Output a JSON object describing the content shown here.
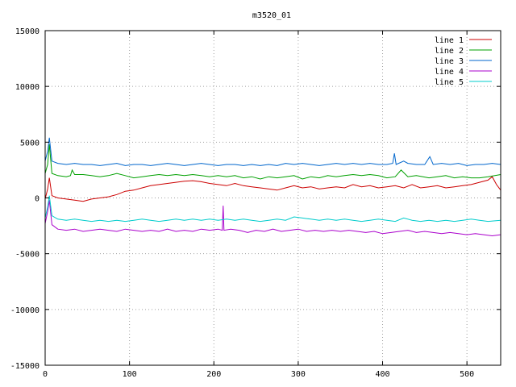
{
  "chart_data": {
    "type": "line",
    "title": "m3520_01",
    "xlabel": "",
    "ylabel": "",
    "xlim": [
      0,
      540
    ],
    "ylim": [
      -15000,
      15000
    ],
    "xticks": [
      0,
      100,
      200,
      300,
      400,
      500
    ],
    "xtick_labels": [
      "0",
      "100",
      "200",
      "300",
      "400",
      "500"
    ],
    "yticks": [
      -15000,
      -10000,
      -5000,
      0,
      5000,
      10000,
      15000
    ],
    "ytick_labels": [
      "-15000",
      "-10000",
      "-5000",
      "0",
      "5000",
      "10000",
      "15000"
    ],
    "grid": true,
    "legend_position": "top-right",
    "series": [
      {
        "name": "line 1",
        "color": "#cc0000",
        "points": [
          [
            0,
            -100
          ],
          [
            3,
            800
          ],
          [
            5,
            1800
          ],
          [
            8,
            200
          ],
          [
            15,
            0
          ],
          [
            25,
            -100
          ],
          [
            35,
            -200
          ],
          [
            45,
            -300
          ],
          [
            55,
            -100
          ],
          [
            65,
            0
          ],
          [
            75,
            100
          ],
          [
            85,
            300
          ],
          [
            95,
            600
          ],
          [
            105,
            700
          ],
          [
            115,
            900
          ],
          [
            125,
            1100
          ],
          [
            135,
            1200
          ],
          [
            145,
            1300
          ],
          [
            155,
            1400
          ],
          [
            165,
            1500
          ],
          [
            175,
            1550
          ],
          [
            185,
            1450
          ],
          [
            195,
            1300
          ],
          [
            205,
            1200
          ],
          [
            215,
            1100
          ],
          [
            225,
            1300
          ],
          [
            235,
            1100
          ],
          [
            245,
            1000
          ],
          [
            255,
            900
          ],
          [
            265,
            800
          ],
          [
            275,
            700
          ],
          [
            285,
            900
          ],
          [
            295,
            1100
          ],
          [
            305,
            900
          ],
          [
            315,
            1000
          ],
          [
            325,
            800
          ],
          [
            335,
            900
          ],
          [
            345,
            1000
          ],
          [
            355,
            900
          ],
          [
            365,
            1200
          ],
          [
            375,
            1000
          ],
          [
            385,
            1100
          ],
          [
            395,
            900
          ],
          [
            405,
            1000
          ],
          [
            415,
            1100
          ],
          [
            425,
            900
          ],
          [
            435,
            1200
          ],
          [
            445,
            900
          ],
          [
            455,
            1000
          ],
          [
            465,
            1100
          ],
          [
            475,
            900
          ],
          [
            485,
            1000
          ],
          [
            495,
            1100
          ],
          [
            505,
            1200
          ],
          [
            515,
            1400
          ],
          [
            525,
            1600
          ],
          [
            530,
            1900
          ],
          [
            535,
            1200
          ],
          [
            540,
            700
          ]
        ]
      },
      {
        "name": "line 2",
        "color": "#00a000",
        "points": [
          [
            0,
            2200
          ],
          [
            3,
            3000
          ],
          [
            5,
            4800
          ],
          [
            8,
            2200
          ],
          [
            15,
            2000
          ],
          [
            25,
            1900
          ],
          [
            30,
            2000
          ],
          [
            32,
            2500
          ],
          [
            35,
            2100
          ],
          [
            45,
            2100
          ],
          [
            55,
            2000
          ],
          [
            65,
            1900
          ],
          [
            75,
            2000
          ],
          [
            85,
            2200
          ],
          [
            95,
            2000
          ],
          [
            105,
            1800
          ],
          [
            115,
            1900
          ],
          [
            125,
            2000
          ],
          [
            135,
            2100
          ],
          [
            145,
            2000
          ],
          [
            155,
            2100
          ],
          [
            165,
            2000
          ],
          [
            175,
            2100
          ],
          [
            185,
            2000
          ],
          [
            195,
            1900
          ],
          [
            205,
            2000
          ],
          [
            215,
            1900
          ],
          [
            225,
            2000
          ],
          [
            235,
            1800
          ],
          [
            245,
            1900
          ],
          [
            255,
            1700
          ],
          [
            265,
            1900
          ],
          [
            275,
            1800
          ],
          [
            285,
            1900
          ],
          [
            295,
            2000
          ],
          [
            305,
            1700
          ],
          [
            315,
            1900
          ],
          [
            325,
            1800
          ],
          [
            335,
            2000
          ],
          [
            345,
            1900
          ],
          [
            355,
            2000
          ],
          [
            365,
            2100
          ],
          [
            375,
            2000
          ],
          [
            385,
            2100
          ],
          [
            395,
            2000
          ],
          [
            405,
            1800
          ],
          [
            415,
            1900
          ],
          [
            422,
            2500
          ],
          [
            430,
            1900
          ],
          [
            440,
            2000
          ],
          [
            455,
            1800
          ],
          [
            465,
            1900
          ],
          [
            475,
            2000
          ],
          [
            485,
            1800
          ],
          [
            495,
            1900
          ],
          [
            505,
            1800
          ],
          [
            515,
            1800
          ],
          [
            525,
            1900
          ],
          [
            540,
            2100
          ]
        ]
      },
      {
        "name": "line 3",
        "color": "#0066cc",
        "points": [
          [
            0,
            3300
          ],
          [
            3,
            4200
          ],
          [
            5,
            5400
          ],
          [
            8,
            3300
          ],
          [
            15,
            3100
          ],
          [
            25,
            3000
          ],
          [
            35,
            3100
          ],
          [
            45,
            3000
          ],
          [
            55,
            3000
          ],
          [
            65,
            2900
          ],
          [
            75,
            3000
          ],
          [
            85,
            3100
          ],
          [
            95,
            2900
          ],
          [
            105,
            3000
          ],
          [
            115,
            3000
          ],
          [
            125,
            2900
          ],
          [
            135,
            3000
          ],
          [
            145,
            3100
          ],
          [
            155,
            3000
          ],
          [
            165,
            2900
          ],
          [
            175,
            3000
          ],
          [
            185,
            3100
          ],
          [
            195,
            3000
          ],
          [
            205,
            2900
          ],
          [
            215,
            3000
          ],
          [
            225,
            3000
          ],
          [
            235,
            2900
          ],
          [
            245,
            3000
          ],
          [
            255,
            2900
          ],
          [
            265,
            3000
          ],
          [
            275,
            2900
          ],
          [
            285,
            3100
          ],
          [
            295,
            3000
          ],
          [
            305,
            3100
          ],
          [
            315,
            3000
          ],
          [
            325,
            2900
          ],
          [
            335,
            3000
          ],
          [
            345,
            3100
          ],
          [
            355,
            3000
          ],
          [
            365,
            3100
          ],
          [
            375,
            3000
          ],
          [
            385,
            3100
          ],
          [
            395,
            3000
          ],
          [
            405,
            3000
          ],
          [
            412,
            3100
          ],
          [
            414,
            4000
          ],
          [
            416,
            3000
          ],
          [
            425,
            3300
          ],
          [
            430,
            3100
          ],
          [
            440,
            3000
          ],
          [
            450,
            3000
          ],
          [
            456,
            3700
          ],
          [
            460,
            3000
          ],
          [
            470,
            3100
          ],
          [
            480,
            3000
          ],
          [
            490,
            3100
          ],
          [
            500,
            2900
          ],
          [
            510,
            3000
          ],
          [
            520,
            3000
          ],
          [
            530,
            3100
          ],
          [
            540,
            3000
          ]
        ]
      },
      {
        "name": "line 4",
        "color": "#aa00cc",
        "points": [
          [
            0,
            -2300
          ],
          [
            3,
            -1200
          ],
          [
            5,
            -200
          ],
          [
            8,
            -2400
          ],
          [
            15,
            -2800
          ],
          [
            25,
            -2900
          ],
          [
            35,
            -2800
          ],
          [
            45,
            -3000
          ],
          [
            55,
            -2900
          ],
          [
            65,
            -2800
          ],
          [
            75,
            -2900
          ],
          [
            85,
            -3000
          ],
          [
            95,
            -2800
          ],
          [
            105,
            -2900
          ],
          [
            115,
            -3000
          ],
          [
            125,
            -2900
          ],
          [
            135,
            -3000
          ],
          [
            145,
            -2800
          ],
          [
            155,
            -3000
          ],
          [
            165,
            -2900
          ],
          [
            175,
            -3000
          ],
          [
            185,
            -2800
          ],
          [
            195,
            -2900
          ],
          [
            205,
            -2800
          ],
          [
            210,
            -2900
          ],
          [
            211,
            -700
          ],
          [
            212,
            -2900
          ],
          [
            220,
            -2800
          ],
          [
            230,
            -2900
          ],
          [
            240,
            -3100
          ],
          [
            250,
            -2900
          ],
          [
            260,
            -3000
          ],
          [
            270,
            -2800
          ],
          [
            280,
            -3000
          ],
          [
            290,
            -2900
          ],
          [
            300,
            -2800
          ],
          [
            310,
            -3000
          ],
          [
            320,
            -2900
          ],
          [
            330,
            -3000
          ],
          [
            340,
            -2900
          ],
          [
            350,
            -3000
          ],
          [
            360,
            -2900
          ],
          [
            370,
            -3000
          ],
          [
            380,
            -3100
          ],
          [
            390,
            -3000
          ],
          [
            400,
            -3200
          ],
          [
            410,
            -3100
          ],
          [
            420,
            -3000
          ],
          [
            430,
            -2900
          ],
          [
            440,
            -3100
          ],
          [
            450,
            -3000
          ],
          [
            460,
            -3100
          ],
          [
            470,
            -3200
          ],
          [
            480,
            -3100
          ],
          [
            490,
            -3200
          ],
          [
            500,
            -3300
          ],
          [
            510,
            -3200
          ],
          [
            520,
            -3300
          ],
          [
            530,
            -3400
          ],
          [
            540,
            -3300
          ]
        ]
      },
      {
        "name": "line 5",
        "color": "#00cccc",
        "points": [
          [
            0,
            -1800
          ],
          [
            3,
            -800
          ],
          [
            5,
            200
          ],
          [
            8,
            -1600
          ],
          [
            15,
            -1900
          ],
          [
            25,
            -2000
          ],
          [
            35,
            -1900
          ],
          [
            45,
            -2000
          ],
          [
            55,
            -2100
          ],
          [
            65,
            -2000
          ],
          [
            75,
            -2100
          ],
          [
            85,
            -2000
          ],
          [
            95,
            -2100
          ],
          [
            105,
            -2000
          ],
          [
            115,
            -1900
          ],
          [
            125,
            -2000
          ],
          [
            135,
            -2100
          ],
          [
            145,
            -2000
          ],
          [
            155,
            -1900
          ],
          [
            165,
            -2000
          ],
          [
            175,
            -1900
          ],
          [
            185,
            -2000
          ],
          [
            195,
            -1900
          ],
          [
            205,
            -2000
          ],
          [
            215,
            -1900
          ],
          [
            225,
            -2000
          ],
          [
            235,
            -1900
          ],
          [
            245,
            -2000
          ],
          [
            255,
            -2100
          ],
          [
            265,
            -2000
          ],
          [
            275,
            -1900
          ],
          [
            285,
            -2000
          ],
          [
            295,
            -1700
          ],
          [
            305,
            -1800
          ],
          [
            315,
            -1900
          ],
          [
            325,
            -2000
          ],
          [
            335,
            -1900
          ],
          [
            345,
            -2000
          ],
          [
            355,
            -1900
          ],
          [
            365,
            -2000
          ],
          [
            375,
            -2100
          ],
          [
            385,
            -2000
          ],
          [
            395,
            -1900
          ],
          [
            405,
            -2000
          ],
          [
            415,
            -2100
          ],
          [
            425,
            -1800
          ],
          [
            435,
            -2000
          ],
          [
            445,
            -2100
          ],
          [
            455,
            -2000
          ],
          [
            465,
            -2100
          ],
          [
            475,
            -2000
          ],
          [
            485,
            -2100
          ],
          [
            495,
            -2000
          ],
          [
            505,
            -1900
          ],
          [
            515,
            -2000
          ],
          [
            525,
            -2100
          ],
          [
            540,
            -2000
          ]
        ]
      }
    ]
  }
}
